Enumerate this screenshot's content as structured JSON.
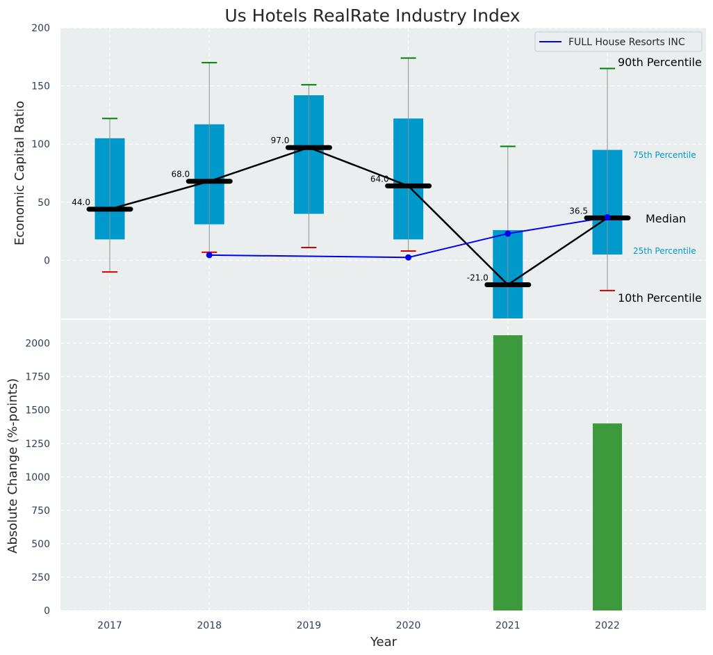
{
  "title": "Us Hotels RealRate Industry Index",
  "colors": {
    "panel_bg": "#eaeeef",
    "grid": "#ffffff",
    "box": "#0099cc",
    "median_mark": "#000000",
    "whisker": "#8a9095",
    "top_cap": "#008000",
    "bottom_cap": "#d00000",
    "company_line": "#0000ee",
    "bar": "#3c9a3c",
    "tick_text": "#2e4057",
    "label_text": "#262626",
    "pct_label": "#0099cc"
  },
  "chart_data": [
    {
      "type": "box",
      "ylabel": "Economic Capital Ratio",
      "ylim": [
        -50,
        200
      ],
      "yticks": [
        0,
        50,
        100,
        150,
        200
      ],
      "grid": true,
      "categories": [
        "2017",
        "2018",
        "2019",
        "2020",
        "2021",
        "2022"
      ],
      "p10": [
        -10,
        7,
        11,
        8,
        -50,
        -26
      ],
      "p25": [
        18,
        31,
        40,
        18,
        -50,
        5
      ],
      "median": [
        44,
        68,
        97,
        64,
        -21,
        36.5
      ],
      "p75": [
        105,
        117,
        142,
        122,
        26,
        95
      ],
      "p90": [
        122,
        170,
        151,
        174,
        98,
        165
      ],
      "median_labels": [
        "44.0",
        "68.0",
        "97.0",
        "64.0",
        "-21.0",
        "36.5"
      ],
      "company_series": {
        "name": "FULL House Resorts INC",
        "categories": [
          "2018",
          "2020",
          "2021",
          "2022"
        ],
        "values": [
          4.5,
          2.5,
          23,
          37
        ]
      },
      "legend": {
        "position": "top-right",
        "entries": [
          "FULL House Resorts INC"
        ]
      },
      "annotations": {
        "p90": "90th Percentile",
        "p75": "75th Percentile",
        "median": "Median",
        "p25": "25th Percentile",
        "p10": "10th Percentile"
      }
    },
    {
      "type": "bar",
      "xlabel": "Year",
      "ylabel": "Absolute Change (%-points)",
      "ylim": [
        0,
        2175
      ],
      "yticks": [
        0,
        250,
        500,
        750,
        1000,
        1250,
        1500,
        1750,
        2000
      ],
      "grid": true,
      "categories": [
        "2017",
        "2018",
        "2019",
        "2020",
        "2021",
        "2022"
      ],
      "values": [
        0,
        0,
        0,
        0,
        2060,
        1400
      ]
    }
  ]
}
